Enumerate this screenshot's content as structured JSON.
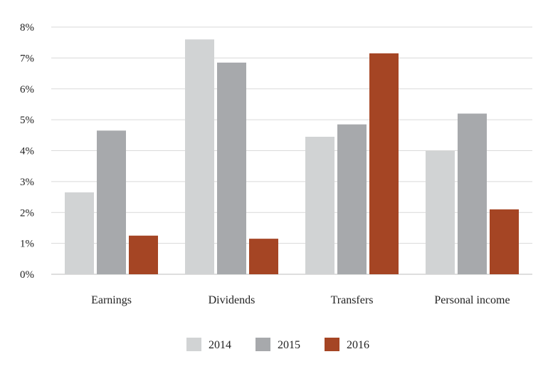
{
  "chart_data": {
    "type": "bar",
    "title": "",
    "xlabel": "",
    "ylabel": "",
    "categories": [
      "Earnings",
      "Dividends",
      "Transfers",
      "Personal income"
    ],
    "series": [
      {
        "name": "2014",
        "color": "#d1d3d4",
        "values": [
          2.65,
          7.6,
          4.45,
          4.0
        ]
      },
      {
        "name": "2015",
        "color": "#a7a9ac",
        "values": [
          4.65,
          6.85,
          4.85,
          5.2
        ]
      },
      {
        "name": "2016",
        "color": "#a54524",
        "values": [
          1.25,
          1.15,
          7.15,
          2.1
        ]
      }
    ],
    "ylim": [
      0,
      8
    ],
    "yticks": [
      "0%",
      "1%",
      "2%",
      "3%",
      "4%",
      "5%",
      "6%",
      "7%",
      "8%"
    ],
    "grid": true,
    "legend_position": "bottom-center"
  }
}
